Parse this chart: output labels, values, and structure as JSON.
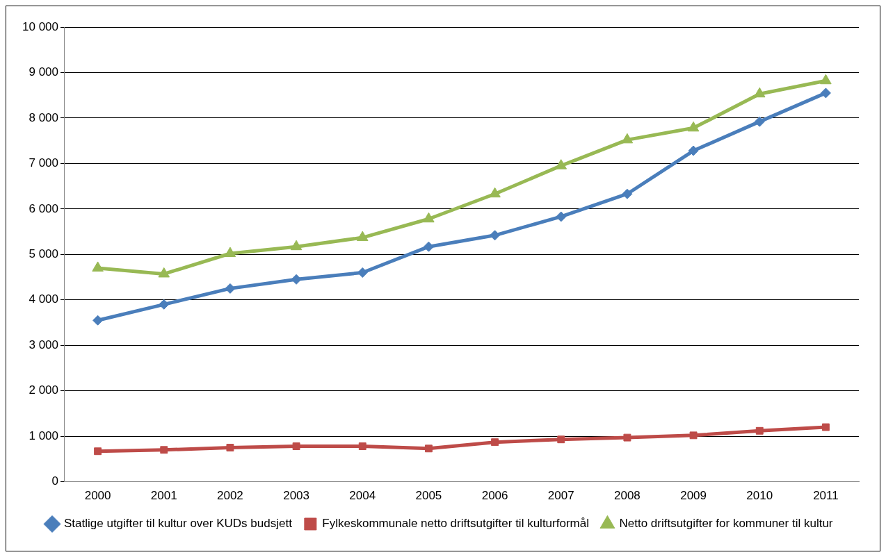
{
  "chart_data": {
    "type": "line",
    "categories": [
      "2000",
      "2001",
      "2002",
      "2003",
      "2004",
      "2005",
      "2006",
      "2007",
      "2008",
      "2009",
      "2010",
      "2011"
    ],
    "series": [
      {
        "name": "Statlige utgifter til kultur over KUDs budsjett",
        "color": "#4a7ebb",
        "marker": "diamond",
        "values": [
          3550,
          3900,
          4250,
          4450,
          4600,
          5170,
          5420,
          5830,
          6330,
          7280,
          7920,
          8550
        ]
      },
      {
        "name": "Fylkeskommunale netto driftsutgifter til kulturformål",
        "color": "#be4b48",
        "marker": "square",
        "values": [
          670,
          700,
          750,
          780,
          780,
          730,
          870,
          930,
          970,
          1020,
          1120,
          1200
        ]
      },
      {
        "name": "Netto driftsutgifter for kommuner til kultur",
        "color": "#98b954",
        "marker": "triangle",
        "values": [
          4700,
          4570,
          5020,
          5170,
          5370,
          5780,
          6330,
          6950,
          7520,
          7780,
          8530,
          8820
        ]
      }
    ],
    "ylim": [
      0,
      10000
    ],
    "yticks": [
      0,
      {
        "value": 1000,
        "label": "1 000"
      },
      {
        "value": 2000,
        "label": "2 000"
      },
      {
        "value": 3000,
        "label": "3 000"
      },
      {
        "value": 4000,
        "label": "4 000"
      },
      {
        "value": 5000,
        "label": "5 000"
      },
      {
        "value": 6000,
        "label": "6 000"
      },
      {
        "value": 7000,
        "label": "7 000"
      },
      {
        "value": 8000,
        "label": "8 000"
      },
      {
        "value": 9000,
        "label": "9 000"
      },
      {
        "value": 10000,
        "label": "10 000"
      }
    ],
    "grid": "y",
    "legend": "bottom",
    "line_style": "solid"
  }
}
